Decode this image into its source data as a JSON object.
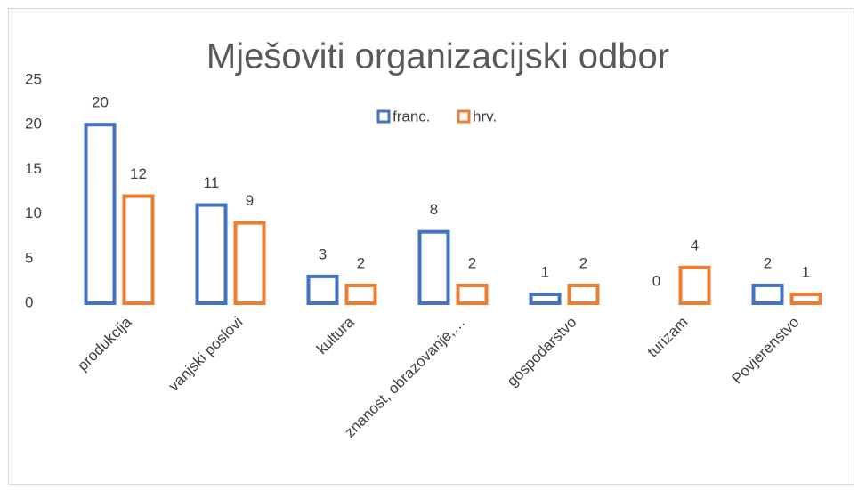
{
  "chart_data": {
    "type": "bar",
    "title": "Mješoviti organizacijski odbor",
    "categories": [
      "produkcija",
      "vanjski poslovi",
      "kultura",
      "znanost, obrazovanje,…",
      "gospodarstvo",
      "turizam",
      "Povjerenstvo"
    ],
    "series": [
      {
        "name": "franc.",
        "color": "#4472c4",
        "values": [
          20,
          11,
          3,
          8,
          1,
          0,
          2
        ]
      },
      {
        "name": "hrv.",
        "color": "#ed7d31",
        "values": [
          12,
          9,
          2,
          2,
          2,
          4,
          1
        ]
      }
    ],
    "ylim": [
      0,
      25
    ],
    "yticks": [
      0,
      5,
      10,
      15,
      20,
      25
    ],
    "grid": false,
    "legend": "top"
  }
}
